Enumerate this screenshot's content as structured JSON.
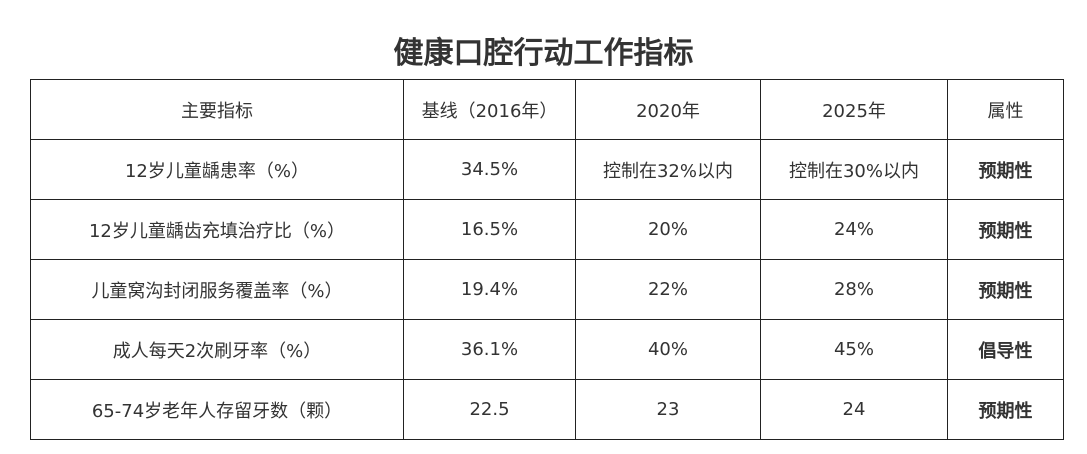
{
  "header": {
    "title": "健康口腔行动工作指标"
  },
  "table": {
    "columns": [
      "主要指标",
      "基线（2016年）",
      "2020年",
      "2025年",
      "属性"
    ],
    "rows": [
      [
        "12岁儿童龋患率（%）",
        "34.5%",
        "控制在32%以内",
        "控制在30%以内",
        "预期性"
      ],
      [
        "12岁儿童龋齿充填治疗比（%）",
        "16.5%",
        "20%",
        "24%",
        "预期性"
      ],
      [
        "儿童窝沟封闭服务覆盖率（%）",
        "19.4%",
        "22%",
        "28%",
        "预期性"
      ],
      [
        "成人每天2次刷牙率（%）",
        "36.1%",
        "40%",
        "45%",
        "倡导性"
      ],
      [
        "65-74岁老年人存留牙数（颗）",
        "22.5",
        "23",
        "24",
        "预期性"
      ]
    ]
  }
}
